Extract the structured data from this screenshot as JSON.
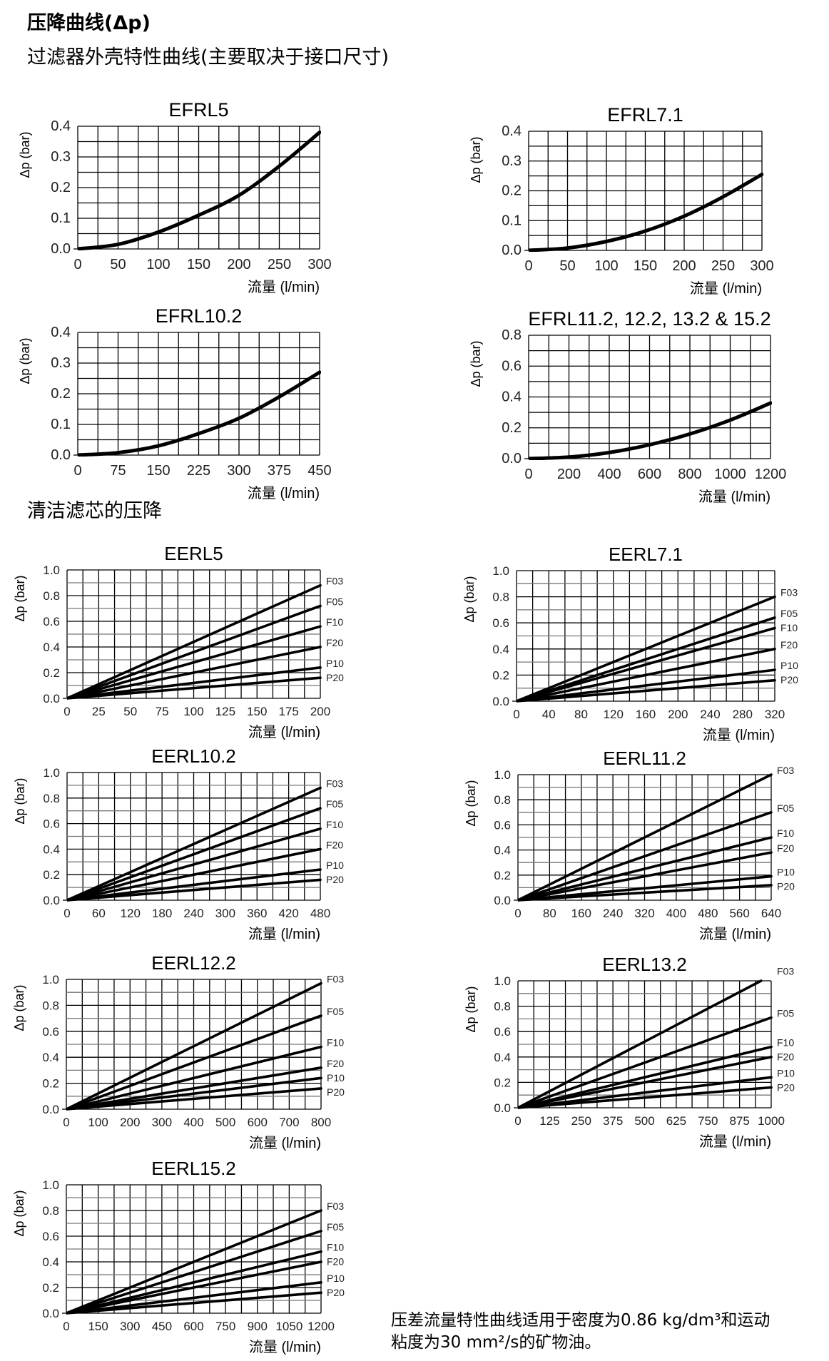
{
  "page": {
    "heading": "压降曲线(Δp)",
    "housing_heading": "过滤器外壳特性曲线(主要取决于接口尺寸)",
    "element_heading": "清洁滤芯的压降",
    "note_line1": "压差流量特性曲线适用于密度为0.86 kg/dm³和运动",
    "note_line2": "粘度为30 mm²/s的矿物油。"
  },
  "chart_data": [
    {
      "type": "line",
      "title": "EFRL5",
      "xlabel": "流量 (l/min)",
      "ylabel": "Δp (bar)",
      "xlim": [
        0,
        300
      ],
      "ylim": [
        0,
        0.4
      ],
      "x_ticks": [
        0,
        50,
        100,
        150,
        200,
        250,
        300
      ],
      "y_ticks": [
        "0.0",
        "0.1",
        "0.2",
        "0.3",
        "0.4"
      ],
      "x_grid_step": 25,
      "y_grid_step": 0.05,
      "grid": true,
      "series": [
        {
          "points": [
            [
              0,
              0
            ],
            [
              50,
              0.015
            ],
            [
              100,
              0.055
            ],
            [
              150,
              0.11
            ],
            [
              200,
              0.175
            ],
            [
              250,
              0.27
            ],
            [
              300,
              0.38
            ]
          ]
        }
      ]
    },
    {
      "type": "line",
      "title": "EFRL7.1",
      "xlabel": "流量 (l/min)",
      "ylabel": "Δp (bar)",
      "xlim": [
        0,
        300
      ],
      "ylim": [
        0,
        0.4
      ],
      "x_ticks": [
        0,
        50,
        100,
        150,
        200,
        250,
        300
      ],
      "y_ticks": [
        "0.0",
        "0.1",
        "0.2",
        "0.3",
        "0.4"
      ],
      "x_grid_step": 25,
      "y_grid_step": 0.05,
      "grid": true,
      "series": [
        {
          "points": [
            [
              0,
              0
            ],
            [
              50,
              0.008
            ],
            [
              100,
              0.03
            ],
            [
              150,
              0.065
            ],
            [
              200,
              0.115
            ],
            [
              250,
              0.18
            ],
            [
              300,
              0.255
            ]
          ]
        }
      ]
    },
    {
      "type": "line",
      "title": "EFRL10.2",
      "xlabel": "流量 (l/min)",
      "ylabel": "Δp (bar)",
      "xlim": [
        0,
        450
      ],
      "ylim": [
        0,
        0.4
      ],
      "x_ticks": [
        0,
        75,
        150,
        225,
        300,
        375,
        450
      ],
      "y_ticks": [
        "0.0",
        "0.1",
        "0.2",
        "0.3",
        "0.4"
      ],
      "x_grid_step": 37.5,
      "y_grid_step": 0.05,
      "grid": true,
      "series": [
        {
          "points": [
            [
              0,
              0
            ],
            [
              75,
              0.008
            ],
            [
              150,
              0.03
            ],
            [
              225,
              0.07
            ],
            [
              300,
              0.12
            ],
            [
              375,
              0.19
            ],
            [
              450,
              0.27
            ]
          ]
        }
      ]
    },
    {
      "type": "line",
      "title": "EFRL11.2, 12.2, 13.2 & 15.2",
      "xlabel": "流量 (l/min)",
      "ylabel": "Δp (bar)",
      "xlim": [
        0,
        1200
      ],
      "ylim": [
        0,
        0.8
      ],
      "x_ticks": [
        0,
        200,
        400,
        600,
        800,
        1000,
        1200
      ],
      "y_ticks": [
        "0.0",
        "0.2",
        "0.4",
        "0.6",
        "0.8"
      ],
      "x_grid_step": 100,
      "y_grid_step": 0.1,
      "grid": true,
      "series": [
        {
          "points": [
            [
              0,
              0
            ],
            [
              200,
              0.01
            ],
            [
              400,
              0.04
            ],
            [
              600,
              0.09
            ],
            [
              800,
              0.16
            ],
            [
              1000,
              0.25
            ],
            [
              1200,
              0.36
            ]
          ]
        }
      ]
    },
    {
      "type": "line",
      "title": "EERL5",
      "xlabel": "流量 (l/min)",
      "ylabel": "Δp (bar)",
      "xlim": [
        0,
        200
      ],
      "ylim": [
        0,
        1.0
      ],
      "x_ticks": [
        0,
        25,
        50,
        75,
        100,
        125,
        150,
        175,
        200
      ],
      "y_ticks": [
        "0.0",
        "0.2",
        "0.4",
        "0.6",
        "0.8",
        "1.0"
      ],
      "x_grid_step": 12.5,
      "y_grid_step": 0.1,
      "grid": true,
      "series": [
        {
          "name": "F03",
          "points": [
            [
              0,
              0
            ],
            [
              200,
              0.88
            ]
          ]
        },
        {
          "name": "F05",
          "points": [
            [
              0,
              0
            ],
            [
              200,
              0.72
            ]
          ]
        },
        {
          "name": "F10",
          "points": [
            [
              0,
              0
            ],
            [
              200,
              0.56
            ]
          ]
        },
        {
          "name": "F20",
          "points": [
            [
              0,
              0
            ],
            [
              200,
              0.4
            ]
          ]
        },
        {
          "name": "P10",
          "points": [
            [
              0,
              0
            ],
            [
              200,
              0.24
            ]
          ]
        },
        {
          "name": "P20",
          "points": [
            [
              0,
              0
            ],
            [
              200,
              0.16
            ]
          ]
        }
      ]
    },
    {
      "type": "line",
      "title": "EERL7.1",
      "xlabel": "流量 (l/min)",
      "ylabel": "Δp (bar)",
      "xlim": [
        0,
        320
      ],
      "ylim": [
        0,
        1.0
      ],
      "x_ticks": [
        0,
        40,
        80,
        120,
        160,
        200,
        240,
        280,
        320
      ],
      "y_ticks": [
        "0.0",
        "0.2",
        "0.4",
        "0.6",
        "0.8",
        "1.0"
      ],
      "x_grid_step": 20,
      "y_grid_step": 0.1,
      "grid": true,
      "series": [
        {
          "name": "F03",
          "points": [
            [
              0,
              0
            ],
            [
              320,
              0.8
            ]
          ]
        },
        {
          "name": "F05",
          "points": [
            [
              0,
              0
            ],
            [
              320,
              0.64
            ]
          ]
        },
        {
          "name": "F10",
          "points": [
            [
              0,
              0
            ],
            [
              320,
              0.56
            ]
          ]
        },
        {
          "name": "F20",
          "points": [
            [
              0,
              0
            ],
            [
              320,
              0.4
            ]
          ]
        },
        {
          "name": "P10",
          "points": [
            [
              0,
              0
            ],
            [
              320,
              0.24
            ]
          ]
        },
        {
          "name": "P20",
          "points": [
            [
              0,
              0
            ],
            [
              320,
              0.16
            ]
          ]
        }
      ]
    },
    {
      "type": "line",
      "title": "EERL10.2",
      "xlabel": "流量 (l/min)",
      "ylabel": "Δp (bar)",
      "xlim": [
        0,
        480
      ],
      "ylim": [
        0,
        1.0
      ],
      "x_ticks": [
        0,
        60,
        120,
        180,
        240,
        300,
        360,
        420,
        480
      ],
      "y_ticks": [
        "0.0",
        "0.2",
        "0.4",
        "0.6",
        "0.8",
        "1.0"
      ],
      "x_grid_step": 30,
      "y_grid_step": 0.1,
      "grid": true,
      "series": [
        {
          "name": "F03",
          "points": [
            [
              0,
              0
            ],
            [
              480,
              0.88
            ]
          ]
        },
        {
          "name": "F05",
          "points": [
            [
              0,
              0
            ],
            [
              480,
              0.72
            ]
          ]
        },
        {
          "name": "F10",
          "points": [
            [
              0,
              0
            ],
            [
              480,
              0.56
            ]
          ]
        },
        {
          "name": "F20",
          "points": [
            [
              0,
              0
            ],
            [
              480,
              0.4
            ]
          ]
        },
        {
          "name": "P10",
          "points": [
            [
              0,
              0
            ],
            [
              480,
              0.24
            ]
          ]
        },
        {
          "name": "P20",
          "points": [
            [
              0,
              0
            ],
            [
              480,
              0.16
            ]
          ]
        }
      ]
    },
    {
      "type": "line",
      "title": "EERL11.2",
      "xlabel": "流量 (l/min)",
      "ylabel": "Δp (bar)",
      "xlim": [
        0,
        640
      ],
      "ylim": [
        0,
        1.0
      ],
      "x_ticks": [
        0,
        80,
        160,
        240,
        320,
        400,
        480,
        560,
        640
      ],
      "y_ticks": [
        "0.0",
        "0.2",
        "0.4",
        "0.6",
        "0.8",
        "1.0"
      ],
      "x_grid_step": 40,
      "y_grid_step": 0.1,
      "grid": true,
      "series": [
        {
          "name": "F03",
          "points": [
            [
              0,
              0
            ],
            [
              640,
              1.0
            ]
          ]
        },
        {
          "name": "F05",
          "points": [
            [
              0,
              0
            ],
            [
              640,
              0.7
            ]
          ]
        },
        {
          "name": "F10",
          "points": [
            [
              0,
              0
            ],
            [
              640,
              0.5
            ]
          ]
        },
        {
          "name": "F20",
          "points": [
            [
              0,
              0
            ],
            [
              640,
              0.38
            ]
          ]
        },
        {
          "name": "P10",
          "points": [
            [
              0,
              0
            ],
            [
              640,
              0.19
            ]
          ]
        },
        {
          "name": "P20",
          "points": [
            [
              0,
              0
            ],
            [
              640,
              0.12
            ]
          ]
        }
      ]
    },
    {
      "type": "line",
      "title": "EERL12.2",
      "xlabel": "流量 (l/min)",
      "ylabel": "Δp (bar)",
      "xlim": [
        0,
        800
      ],
      "ylim": [
        0,
        1.0
      ],
      "x_ticks": [
        0,
        100,
        200,
        300,
        400,
        500,
        600,
        700,
        800
      ],
      "y_ticks": [
        "0.0",
        "0.2",
        "0.4",
        "0.6",
        "0.8",
        "1.0"
      ],
      "x_grid_step": 50,
      "y_grid_step": 0.1,
      "grid": true,
      "series": [
        {
          "name": "F03",
          "points": [
            [
              0,
              0
            ],
            [
              800,
              0.97
            ]
          ]
        },
        {
          "name": "F05",
          "points": [
            [
              0,
              0
            ],
            [
              800,
              0.72
            ]
          ]
        },
        {
          "name": "F10",
          "points": [
            [
              0,
              0
            ],
            [
              800,
              0.48
            ]
          ]
        },
        {
          "name": "F20",
          "points": [
            [
              0,
              0
            ],
            [
              800,
              0.32
            ]
          ]
        },
        {
          "name": "P10",
          "points": [
            [
              0,
              0
            ],
            [
              800,
              0.24
            ]
          ]
        },
        {
          "name": "P20",
          "points": [
            [
              0,
              0
            ],
            [
              800,
              0.16
            ]
          ]
        }
      ]
    },
    {
      "type": "line",
      "title": "EERL13.2",
      "xlabel": "流量 (l/min)",
      "ylabel": "Δp (bar)",
      "xlim": [
        0,
        1000
      ],
      "ylim": [
        0,
        1.0
      ],
      "x_ticks": [
        0,
        125,
        250,
        375,
        500,
        625,
        750,
        875,
        1000
      ],
      "y_ticks": [
        "0.0",
        "0.2",
        "0.4",
        "0.6",
        "0.8",
        "1.0"
      ],
      "x_grid_step": 62.5,
      "y_grid_step": 0.1,
      "grid": true,
      "series": [
        {
          "name": "F03",
          "points": [
            [
              0,
              0
            ],
            [
              960,
              1.0
            ]
          ]
        },
        {
          "name": "F05",
          "points": [
            [
              0,
              0
            ],
            [
              1000,
              0.71
            ]
          ]
        },
        {
          "name": "F10",
          "points": [
            [
              0,
              0
            ],
            [
              1000,
              0.48
            ]
          ]
        },
        {
          "name": "F20",
          "points": [
            [
              0,
              0
            ],
            [
              1000,
              0.4
            ]
          ]
        },
        {
          "name": "P10",
          "points": [
            [
              0,
              0
            ],
            [
              1000,
              0.24
            ]
          ]
        },
        {
          "name": "P20",
          "points": [
            [
              0,
              0
            ],
            [
              1000,
              0.16
            ]
          ]
        }
      ]
    },
    {
      "type": "line",
      "title": "EERL15.2",
      "xlabel": "流量 (l/min)",
      "ylabel": "Δp (bar)",
      "xlim": [
        0,
        1200
      ],
      "ylim": [
        0,
        1.0
      ],
      "x_ticks": [
        0,
        150,
        300,
        450,
        600,
        750,
        900,
        1050,
        1200
      ],
      "y_ticks": [
        "0.0",
        "0.2",
        "0.4",
        "0.6",
        "0.8",
        "1.0"
      ],
      "x_grid_step": 75,
      "y_grid_step": 0.1,
      "grid": true,
      "series": [
        {
          "name": "F03",
          "points": [
            [
              0,
              0
            ],
            [
              1200,
              0.8
            ]
          ]
        },
        {
          "name": "F05",
          "points": [
            [
              0,
              0
            ],
            [
              1200,
              0.64
            ]
          ]
        },
        {
          "name": "F10",
          "points": [
            [
              0,
              0
            ],
            [
              1200,
              0.48
            ]
          ]
        },
        {
          "name": "F20",
          "points": [
            [
              0,
              0
            ],
            [
              1200,
              0.4
            ]
          ]
        },
        {
          "name": "P10",
          "points": [
            [
              0,
              0
            ],
            [
              1200,
              0.24
            ]
          ]
        },
        {
          "name": "P20",
          "points": [
            [
              0,
              0
            ],
            [
              1200,
              0.16
            ]
          ]
        }
      ]
    }
  ]
}
